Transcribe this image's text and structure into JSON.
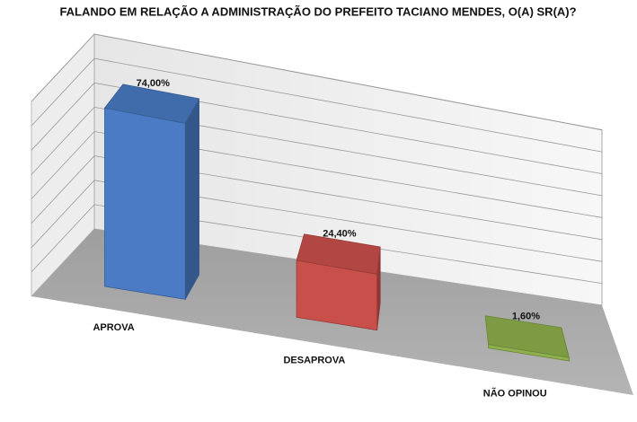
{
  "chart_data": {
    "type": "bar3d",
    "title": "FALANDO EM RELAÇÃO A ADMINISTRAÇÃO DO PREFEITO TACIANO MENDES, O(A) SR(A)?",
    "categories": [
      "APROVA",
      "DESAPROVA",
      "NÃO OPINOU"
    ],
    "values": [
      74,
      24.4,
      1.6
    ],
    "value_labels": [
      "74,00%",
      "24,40%",
      "1,60%"
    ],
    "colors": [
      "#4a7bc4",
      "#c94f4b",
      "#8db04c"
    ],
    "ylim": [
      0,
      80
    ],
    "grid": true
  }
}
